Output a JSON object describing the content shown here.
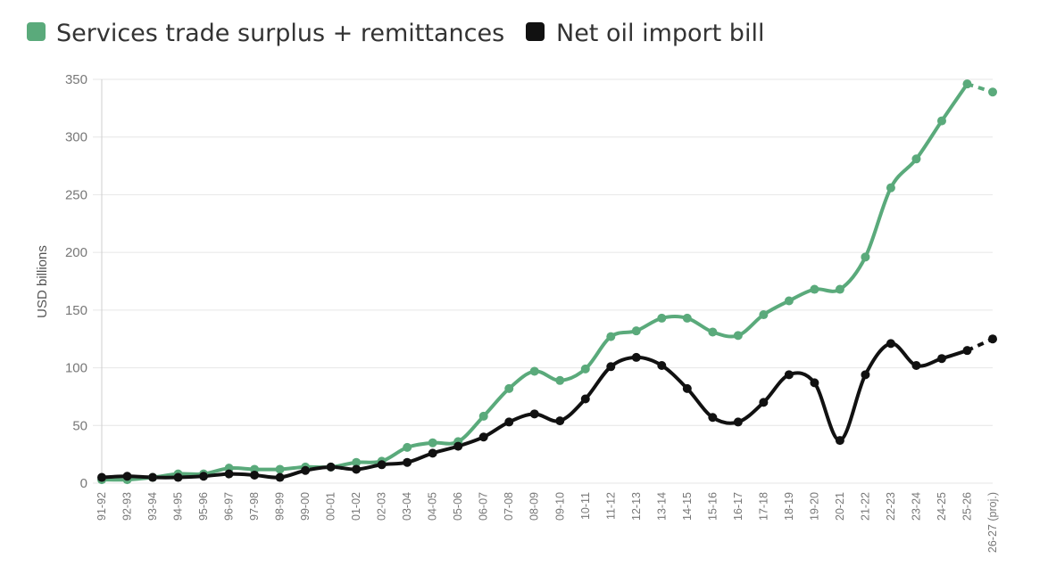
{
  "chart_data": {
    "type": "line",
    "ylabel": "USD billions",
    "ylim": [
      0,
      350
    ],
    "yticks": [
      0,
      50,
      100,
      150,
      200,
      250,
      300,
      350
    ],
    "grid": true,
    "legend_position": "top-left",
    "categories": [
      "91-92",
      "92-93",
      "93-94",
      "94-95",
      "95-96",
      "96-97",
      "97-98",
      "98-99",
      "99-00",
      "00-01",
      "01-02",
      "02-03",
      "03-04",
      "04-05",
      "05-06",
      "06-07",
      "07-08",
      "08-09",
      "09-10",
      "10-11",
      "11-12",
      "12-13",
      "13-14",
      "14-15",
      "15-16",
      "16-17",
      "17-18",
      "18-19",
      "19-20",
      "20-21",
      "21-22",
      "22-23",
      "23-24",
      "24-25",
      "25-26",
      "26-27 (proj.)"
    ],
    "series": [
      {
        "name": "Services trade surplus + remittances",
        "color": "#5aaa7b",
        "values": [
          3,
          3,
          5,
          8,
          8,
          13,
          12,
          12,
          14,
          14,
          18,
          19,
          31,
          35,
          36,
          58,
          82,
          97,
          89,
          99,
          127,
          132,
          143,
          143,
          131,
          128,
          146,
          158,
          168,
          168,
          196,
          256,
          281,
          314,
          346,
          339
        ],
        "projected_from_index": 34
      },
      {
        "name": "Net oil import bill",
        "color": "#111111",
        "values": [
          5,
          6,
          5,
          5,
          6,
          8,
          7,
          5,
          11,
          14,
          12,
          16,
          18,
          26,
          32,
          40,
          53,
          60,
          54,
          73,
          101,
          109,
          102,
          82,
          57,
          53,
          70,
          94,
          87,
          37,
          94,
          121,
          102,
          108,
          115,
          125
        ],
        "projected_from_index": 34
      }
    ]
  }
}
